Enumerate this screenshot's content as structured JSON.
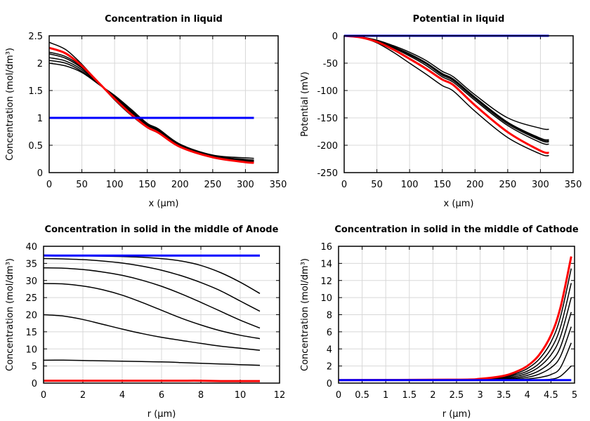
{
  "chart_data": [
    {
      "type": "line",
      "title": "Concentration in liquid",
      "xlabel": "x (µm)",
      "ylabel": "Concentration (mol/dm³)",
      "xlim": [
        0,
        350
      ],
      "ylim": [
        0,
        2.5
      ],
      "xticks": [
        "0",
        "50",
        "100",
        "150",
        "200",
        "250",
        "300",
        "350"
      ],
      "yticks": [
        "0",
        "0.5",
        "1",
        "1.5",
        "2",
        "2.5"
      ],
      "grid": true,
      "x": [
        0,
        25,
        50,
        75,
        100,
        125,
        150,
        167,
        200,
        250,
        300,
        313
      ],
      "series": [
        {
          "color": "#000000",
          "y": [
            2.38,
            2.25,
            1.98,
            1.65,
            1.33,
            1.05,
            0.82,
            0.72,
            0.47,
            0.29,
            0.21,
            0.2
          ]
        },
        {
          "color": "#000000",
          "y": [
            2.2,
            2.12,
            1.93,
            1.64,
            1.37,
            1.1,
            0.86,
            0.76,
            0.49,
            0.3,
            0.22,
            0.21
          ]
        },
        {
          "color": "#000000",
          "y": [
            2.17,
            2.09,
            1.91,
            1.64,
            1.38,
            1.11,
            0.87,
            0.77,
            0.5,
            0.3,
            0.22,
            0.21
          ]
        },
        {
          "color": "#000000",
          "y": [
            2.1,
            2.04,
            1.88,
            1.63,
            1.39,
            1.13,
            0.88,
            0.78,
            0.5,
            0.31,
            0.23,
            0.22
          ]
        },
        {
          "color": "#000000",
          "y": [
            2.05,
            2.0,
            1.85,
            1.62,
            1.4,
            1.15,
            0.89,
            0.79,
            0.51,
            0.31,
            0.24,
            0.23
          ]
        },
        {
          "color": "#000000",
          "y": [
            2.0,
            1.95,
            1.83,
            1.62,
            1.41,
            1.16,
            0.9,
            0.8,
            0.52,
            0.32,
            0.27,
            0.26
          ]
        },
        {
          "color": "#ff0000",
          "y": [
            2.28,
            2.18,
            1.95,
            1.65,
            1.35,
            1.07,
            0.83,
            0.73,
            0.47,
            0.28,
            0.19,
            0.18
          ]
        },
        {
          "color": "#0000ff",
          "y": [
            1,
            1,
            1,
            1,
            1,
            1,
            1,
            1,
            1,
            1,
            1,
            1
          ]
        }
      ]
    },
    {
      "type": "line",
      "title": "Potential in liquid",
      "xlabel": "x (µm)",
      "ylabel": "Potential (mV)",
      "xlim": [
        0,
        350
      ],
      "ylim": [
        -250,
        0
      ],
      "xticks": [
        "0",
        "50",
        "100",
        "150",
        "200",
        "250",
        "300",
        "350"
      ],
      "yticks": [
        "-250",
        "-200",
        "-150",
        "-100",
        "-50",
        "0"
      ],
      "grid": true,
      "x": [
        0,
        25,
        50,
        75,
        100,
        125,
        150,
        167,
        200,
        250,
        300,
        313
      ],
      "series": [
        {
          "color": "#000000",
          "y": [
            0,
            -2,
            -8,
            -18,
            -30,
            -45,
            -65,
            -75,
            -108,
            -150,
            -169,
            -171
          ]
        },
        {
          "color": "#000000",
          "y": [
            0,
            -2,
            -9,
            -20,
            -33,
            -49,
            -69,
            -79,
            -112,
            -158,
            -187,
            -190
          ]
        },
        {
          "color": "#000000",
          "y": [
            0,
            -2,
            -9,
            -20,
            -34,
            -50,
            -70,
            -80,
            -113,
            -159,
            -189,
            -192
          ]
        },
        {
          "color": "#000000",
          "y": [
            0,
            -2,
            -9,
            -21,
            -35,
            -51,
            -72,
            -82,
            -115,
            -161,
            -191,
            -194
          ]
        },
        {
          "color": "#000000",
          "y": [
            0,
            -2,
            -10,
            -22,
            -37,
            -54,
            -75,
            -85,
            -118,
            -164,
            -195,
            -198
          ]
        },
        {
          "color": "#000000",
          "y": [
            0,
            -3,
            -13,
            -30,
            -50,
            -70,
            -91,
            -101,
            -138,
            -186,
            -216,
            -219
          ]
        },
        {
          "color": "#ff0000",
          "y": [
            0,
            -3,
            -11,
            -25,
            -42,
            -60,
            -80,
            -90,
            -127,
            -176,
            -210,
            -214
          ]
        },
        {
          "color": "#0000ff",
          "y": [
            0,
            0,
            0,
            0,
            0,
            0,
            0,
            0,
            0,
            0,
            0,
            0
          ]
        }
      ]
    },
    {
      "type": "line",
      "title": "Concentration in solid in the middle of Anode",
      "xlabel": "r (µm)",
      "ylabel": "Concentration (mol/dm³)",
      "xlim": [
        0,
        12
      ],
      "ylim": [
        0,
        40
      ],
      "xticks": [
        "0",
        "2",
        "4",
        "6",
        "8",
        "10",
        "12"
      ],
      "yticks": [
        "0",
        "5",
        "10",
        "15",
        "20",
        "25",
        "30",
        "35",
        "40"
      ],
      "grid": true,
      "x": [
        0,
        1,
        2,
        3,
        4,
        5,
        6,
        7,
        8,
        9,
        10,
        11
      ],
      "series": [
        {
          "color": "#000000",
          "y": [
            37.3,
            37.3,
            37.2,
            37.1,
            37.0,
            36.8,
            36.4,
            35.7,
            34.4,
            32.3,
            29.5,
            26.2
          ]
        },
        {
          "color": "#000000",
          "y": [
            36.4,
            36.3,
            36.1,
            35.7,
            35.1,
            34.2,
            33.0,
            31.4,
            29.4,
            27.0,
            24.0,
            21.0
          ]
        },
        {
          "color": "#000000",
          "y": [
            33.7,
            33.6,
            33.2,
            32.5,
            31.5,
            30.1,
            28.3,
            26.1,
            23.6,
            21.0,
            18.4,
            16.1
          ]
        },
        {
          "color": "#000000",
          "y": [
            29.1,
            29.0,
            28.4,
            27.3,
            25.7,
            23.6,
            21.3,
            19.0,
            17.0,
            15.3,
            14.0,
            13.0
          ]
        },
        {
          "color": "#000000",
          "y": [
            20.0,
            19.6,
            18.6,
            17.2,
            15.8,
            14.5,
            13.4,
            12.5,
            11.6,
            10.8,
            10.2,
            9.6
          ]
        },
        {
          "color": "#000000",
          "y": [
            6.7,
            6.7,
            6.6,
            6.5,
            6.4,
            6.3,
            6.2,
            6.0,
            5.8,
            5.6,
            5.4,
            5.2
          ]
        },
        {
          "color": "#ff0000",
          "y": [
            0.7,
            0.7,
            0.7,
            0.7,
            0.7,
            0.7,
            0.7,
            0.7,
            0.7,
            0.6,
            0.6,
            0.6
          ]
        },
        {
          "color": "#0000ff",
          "y": [
            37.3,
            37.3,
            37.3,
            37.3,
            37.3,
            37.3,
            37.3,
            37.3,
            37.3,
            37.3,
            37.3,
            37.3
          ]
        }
      ]
    },
    {
      "type": "line",
      "title": "Concentration in solid in the middle of Cathode",
      "xlabel": "r (µm)",
      "ylabel": "Concentration (mol/dm³)",
      "xlim": [
        0,
        5
      ],
      "ylim": [
        0,
        16
      ],
      "xticks": [
        "0",
        "0.5",
        "1",
        "1.5",
        "2",
        "2.5",
        "3",
        "3.5",
        "4",
        "4.5",
        "5"
      ],
      "yticks": [
        "0",
        "2",
        "4",
        "6",
        "8",
        "10",
        "12",
        "14",
        "16"
      ],
      "grid": true,
      "x": [
        0,
        2.5,
        3,
        3.5,
        3.75,
        4,
        4.25,
        4.5,
        4.7,
        4.93
      ],
      "series": [
        {
          "color": "#000000",
          "y": [
            0.35,
            0.38,
            0.45,
            0.75,
            1.1,
            1.7,
            2.8,
            4.8,
            7.7,
            13.4
          ]
        },
        {
          "color": "#000000",
          "y": [
            0.35,
            0.37,
            0.42,
            0.65,
            0.95,
            1.4,
            2.3,
            4.0,
            6.5,
            11.7
          ]
        },
        {
          "color": "#000000",
          "y": [
            0.35,
            0.36,
            0.4,
            0.55,
            0.78,
            1.15,
            1.9,
            3.3,
            5.4,
            10.0
          ]
        },
        {
          "color": "#000000",
          "y": [
            0.35,
            0.35,
            0.38,
            0.48,
            0.62,
            0.9,
            1.45,
            2.5,
            4.2,
            8.3
          ]
        },
        {
          "color": "#000000",
          "y": [
            0.35,
            0.35,
            0.36,
            0.42,
            0.5,
            0.68,
            1.05,
            1.8,
            3.1,
            6.6
          ]
        },
        {
          "color": "#000000",
          "y": [
            0.35,
            0.35,
            0.35,
            0.37,
            0.4,
            0.48,
            0.65,
            1.0,
            1.8,
            4.7
          ]
        },
        {
          "color": "#000000",
          "y": [
            0.35,
            0.35,
            0.35,
            0.35,
            0.35,
            0.36,
            0.38,
            0.45,
            0.8,
            2.0
          ]
        },
        {
          "color": "#ff0000",
          "y": [
            0.35,
            0.4,
            0.5,
            0.85,
            1.3,
            2.0,
            3.3,
            5.6,
            8.8,
            14.8
          ]
        },
        {
          "color": "#0000ff",
          "y": [
            0.35,
            0.35,
            0.35,
            0.35,
            0.35,
            0.35,
            0.35,
            0.35,
            0.35,
            0.35
          ]
        }
      ]
    }
  ]
}
